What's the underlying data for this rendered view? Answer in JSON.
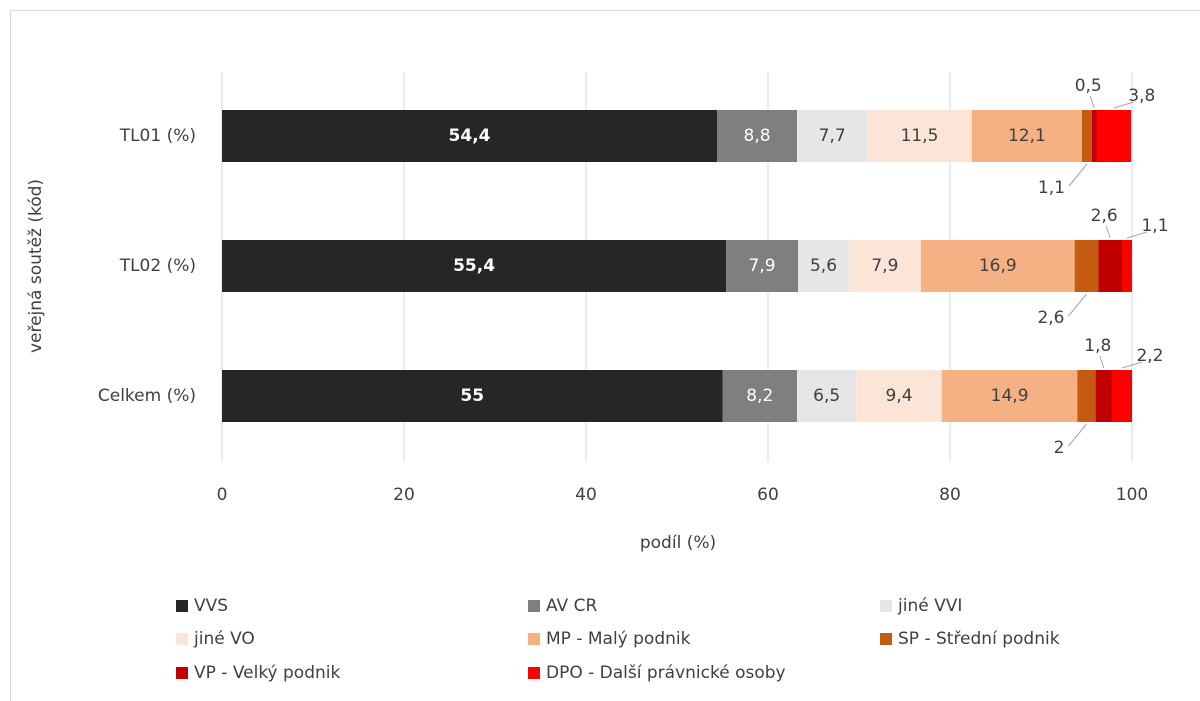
{
  "chart_data": {
    "type": "stacked-bar-horizontal",
    "categories": [
      "TL01 (%)",
      "TL02 (%)",
      "Celkem (%)"
    ],
    "xlabel": "podíl (%)",
    "ylabel": "veřejná soutěž (kód)",
    "xlim": [
      0,
      100
    ],
    "xticks": [
      0,
      20,
      40,
      60,
      80,
      100
    ],
    "grid": true,
    "legend": "bottom",
    "series": [
      {
        "name": "VVS",
        "color": "#262626",
        "values": [
          54.4,
          55.4,
          55
        ],
        "value_labels": [
          "54,4",
          "55,4",
          "55"
        ]
      },
      {
        "name": "AV CR",
        "color": "#7f7f7f",
        "values": [
          8.8,
          7.9,
          8.2
        ],
        "value_labels": [
          "8,8",
          "7,9",
          "8,2"
        ]
      },
      {
        "name": "jiné VVI",
        "color": "#e7e6e6",
        "values": [
          7.7,
          5.6,
          6.5
        ],
        "value_labels": [
          "7,7",
          "5,6",
          "6,5"
        ]
      },
      {
        "name": "jiné VO",
        "color": "#fce4d6",
        "values": [
          11.5,
          7.9,
          9.4
        ],
        "value_labels": [
          "11,5",
          "7,9",
          "9,4"
        ]
      },
      {
        "name": "MP - Malý podnik",
        "color": "#f4b183",
        "values": [
          12.1,
          16.9,
          14.9
        ],
        "value_labels": [
          "12,1",
          "16,9",
          "14,9"
        ]
      },
      {
        "name": "SP - Střední podnik",
        "color": "#c55a11",
        "values": [
          1.1,
          2.6,
          2
        ],
        "value_labels": [
          "1,1",
          "2,6",
          "2"
        ]
      },
      {
        "name": "VP - Velký podnik",
        "color": "#c00000",
        "values": [
          0.5,
          2.6,
          1.8
        ],
        "value_labels": [
          "0,5",
          "2,6",
          "1,8"
        ]
      },
      {
        "name": "DPO - Další právnické osoby",
        "color": "#ff0000",
        "values": [
          3.8,
          1.1,
          2.2
        ],
        "value_labels": [
          "3,8",
          "1,1",
          "2,2"
        ]
      }
    ]
  }
}
